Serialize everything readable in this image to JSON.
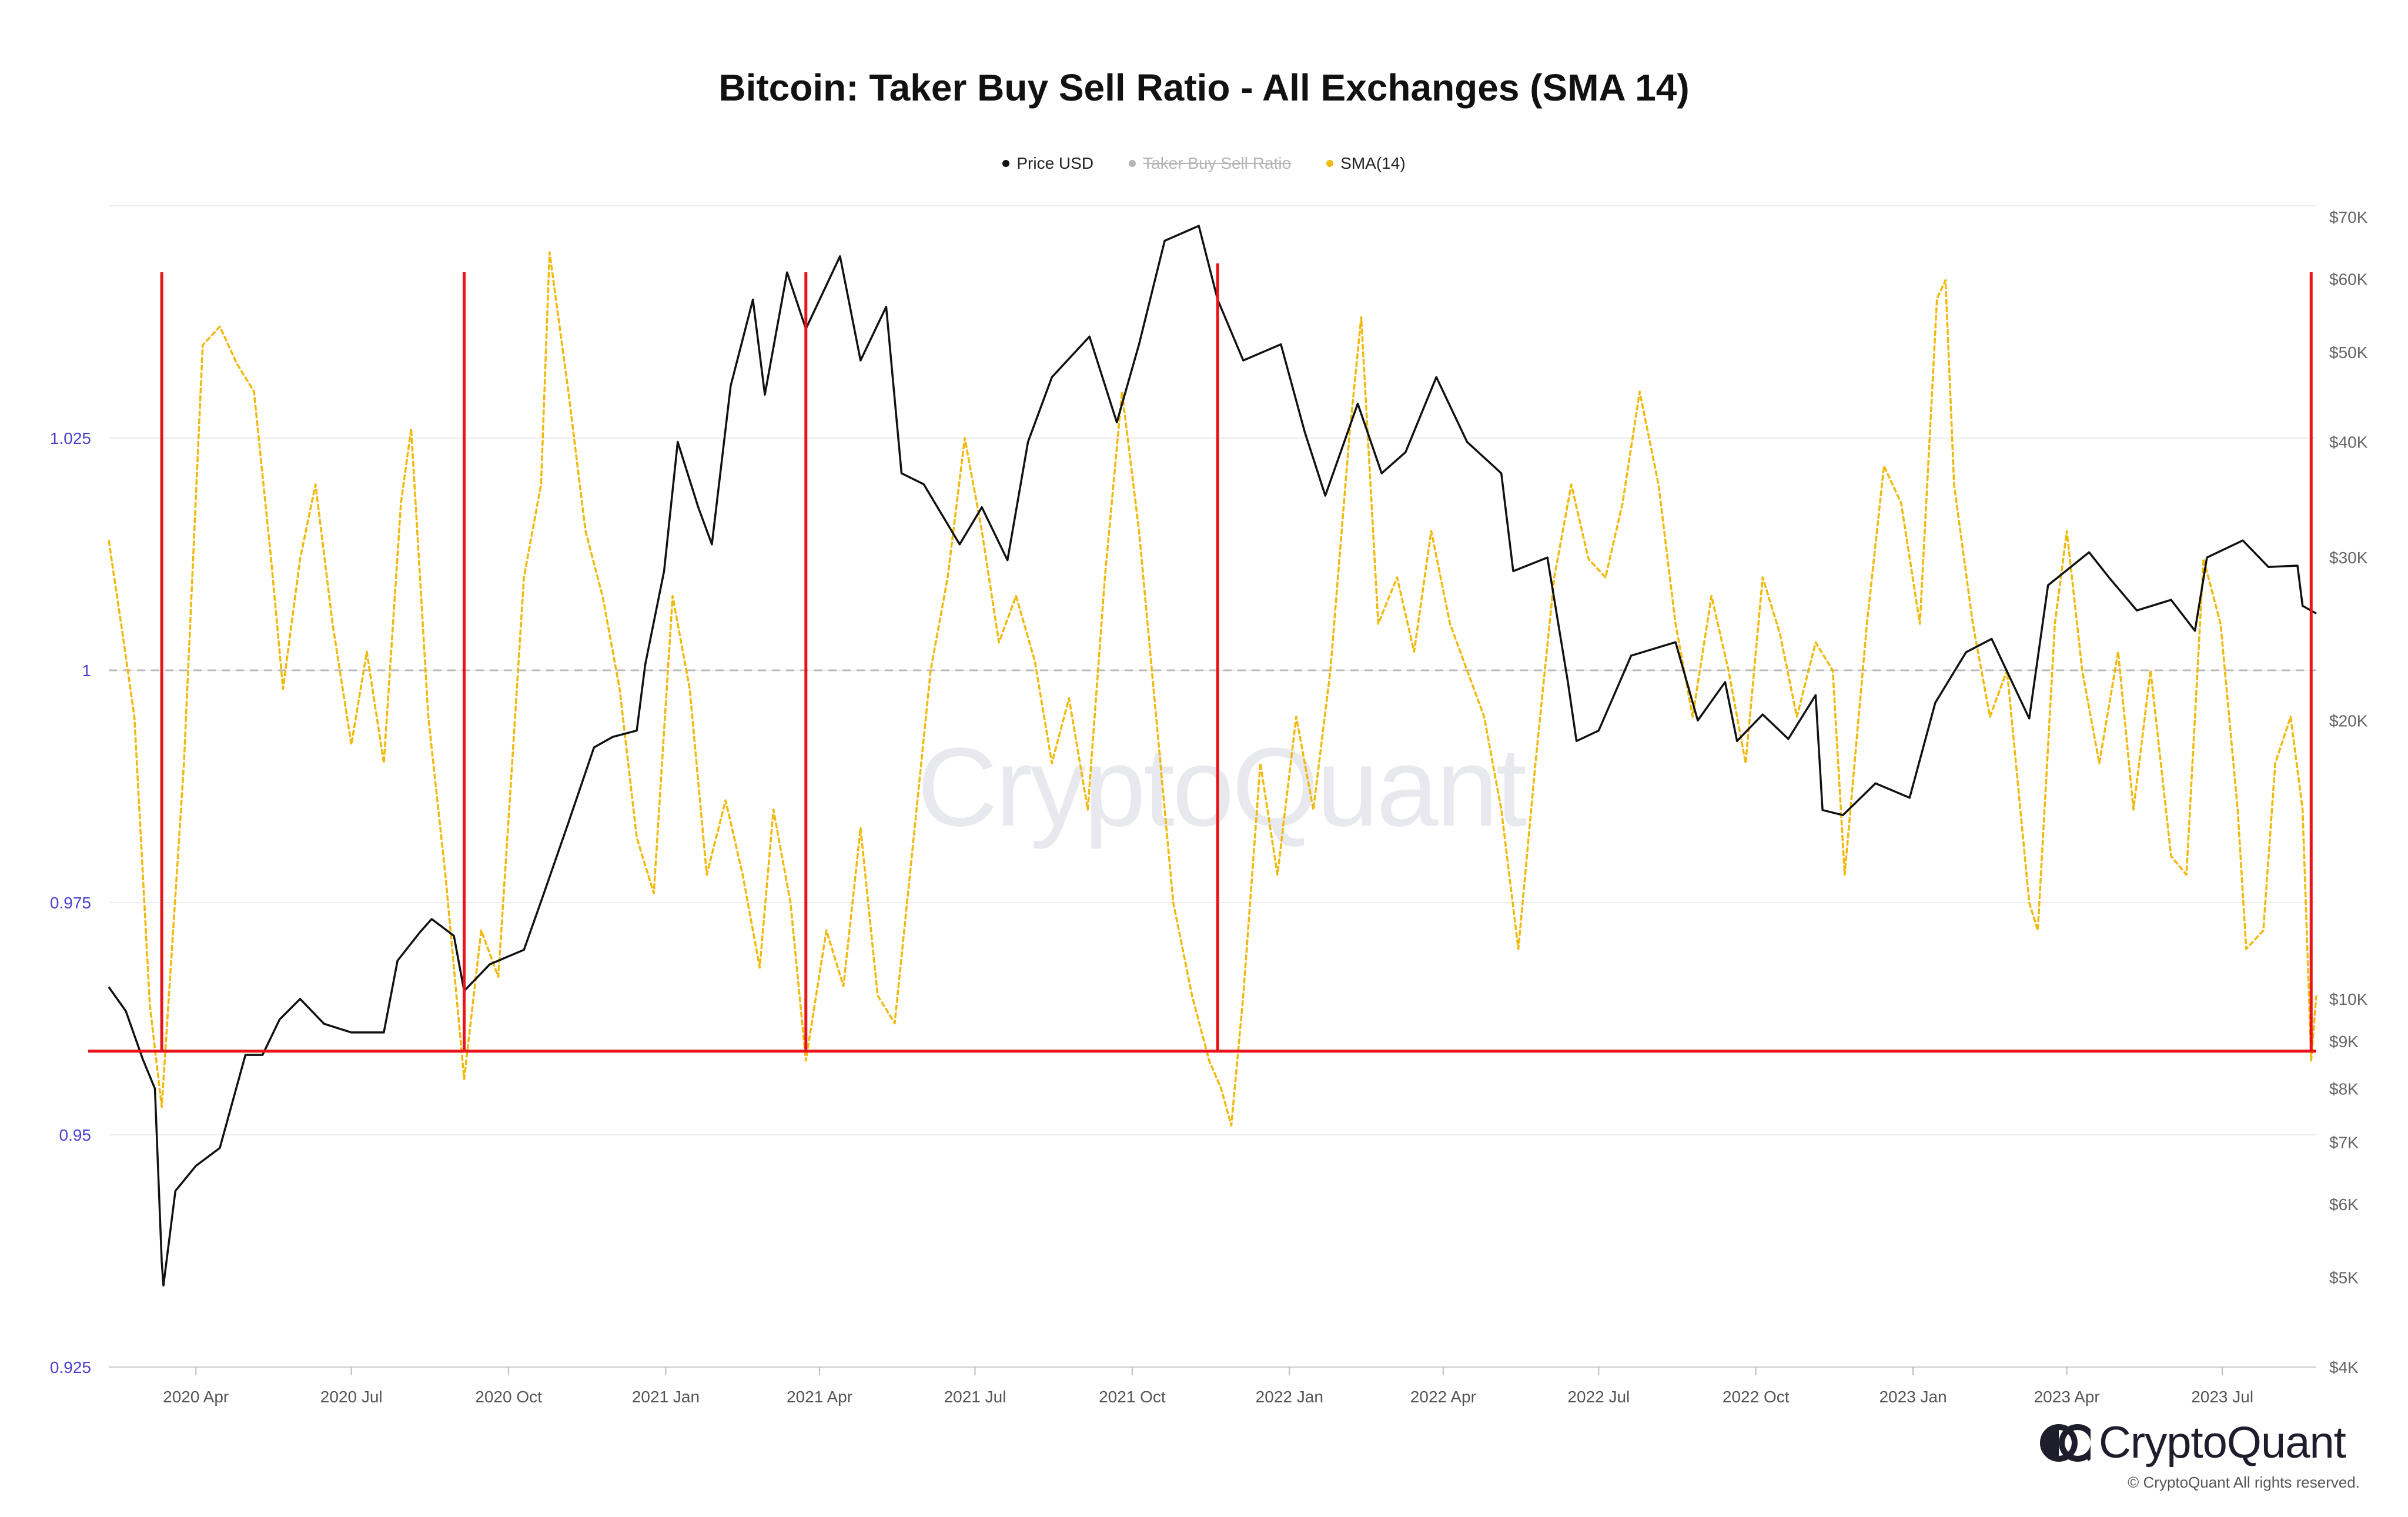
{
  "title": "Bitcoin: Taker Buy Sell Ratio - All Exchanges (SMA 14)",
  "legend": [
    {
      "label": "Price USD",
      "color": "#111111",
      "hidden": false
    },
    {
      "label": "Taker Buy Sell Ratio",
      "color": "#aaaaaa",
      "hidden": true
    },
    {
      "label": "SMA(14)",
      "color": "#f0b90b",
      "hidden": false
    }
  ],
  "watermark": "CryptoQuant",
  "brand": "CryptoQuant",
  "copyright": "© CryptoQuant All rights reserved.",
  "colors": {
    "price": "#111111",
    "sma": "#f0b90b",
    "markers": "#e8141a",
    "left_axis": "#4a3fcf",
    "right_axis": "#666666",
    "reference": "#bbbbbb"
  },
  "chart_data": {
    "type": "line",
    "title": "Bitcoin: Taker Buy Sell Ratio - All Exchanges (SMA 14)",
    "x_range": [
      "2020-02-10",
      "2023-08-25"
    ],
    "x_ticks": [
      "2020 Apr",
      "2020 Jul",
      "2020 Oct",
      "2021 Jan",
      "2021 Apr",
      "2021 Jul",
      "2021 Oct",
      "2022 Jan",
      "2022 Apr",
      "2022 Jul",
      "2022 Oct",
      "2023 Jan",
      "2023 Apr",
      "2023 Jul"
    ],
    "x_tick_dates": [
      "2020-04-01",
      "2020-07-01",
      "2020-10-01",
      "2021-01-01",
      "2021-04-01",
      "2021-07-01",
      "2021-10-01",
      "2022-01-01",
      "2022-04-01",
      "2022-07-01",
      "2022-10-01",
      "2023-01-01",
      "2023-04-01",
      "2023-07-01"
    ],
    "y_left": {
      "ticks": [
        "0.925",
        "0.95",
        "0.975",
        "1",
        "1.025"
      ],
      "tick_values": [
        0.925,
        0.95,
        0.975,
        1,
        1.025
      ],
      "range": [
        0.925,
        1.05
      ]
    },
    "y_right": {
      "scale": "log",
      "ticks": [
        "$4K",
        "$5K",
        "$6K",
        "$7K",
        "$8K",
        "$9K",
        "$10K",
        "$20K",
        "$30K",
        "$40K",
        "$50K",
        "$60K",
        "$70K"
      ],
      "tick_values": [
        4000,
        5000,
        6000,
        7000,
        8000,
        9000,
        10000,
        20000,
        30000,
        40000,
        50000,
        60000,
        70000
      ],
      "range": [
        4000,
        72000
      ]
    },
    "reference_line": {
      "axis": "left",
      "value": 1.0,
      "style": "dashed"
    },
    "threshold_line": {
      "axis": "left",
      "value": 0.959
    },
    "vertical_markers": [
      "2020-03-12",
      "2020-09-05",
      "2021-03-24",
      "2021-11-20",
      "2023-08-22"
    ],
    "series": [
      {
        "name": "Price USD",
        "axis": "right",
        "points": [
          [
            "2020-02-10",
            10300
          ],
          [
            "2020-02-20",
            9700
          ],
          [
            "2020-03-01",
            8600
          ],
          [
            "2020-03-08",
            8000
          ],
          [
            "2020-03-12",
            5200
          ],
          [
            "2020-03-13",
            4900
          ],
          [
            "2020-03-20",
            6200
          ],
          [
            "2020-04-01",
            6600
          ],
          [
            "2020-04-15",
            6900
          ],
          [
            "2020-04-30",
            8700
          ],
          [
            "2020-05-10",
            8700
          ],
          [
            "2020-05-20",
            9500
          ],
          [
            "2020-06-01",
            10000
          ],
          [
            "2020-06-15",
            9400
          ],
          [
            "2020-07-01",
            9200
          ],
          [
            "2020-07-20",
            9200
          ],
          [
            "2020-07-28",
            11000
          ],
          [
            "2020-08-10",
            11800
          ],
          [
            "2020-08-17",
            12200
          ],
          [
            "2020-08-30",
            11700
          ],
          [
            "2020-09-05",
            10200
          ],
          [
            "2020-09-20",
            10900
          ],
          [
            "2020-10-10",
            11300
          ],
          [
            "2020-10-21",
            12900
          ],
          [
            "2020-11-05",
            15500
          ],
          [
            "2020-11-20",
            18700
          ],
          [
            "2020-12-01",
            19200
          ],
          [
            "2020-12-15",
            19500
          ],
          [
            "2020-12-20",
            23000
          ],
          [
            "2020-12-31",
            29000
          ],
          [
            "2021-01-08",
            40000
          ],
          [
            "2021-01-20",
            34000
          ],
          [
            "2021-01-28",
            31000
          ],
          [
            "2021-02-08",
            46000
          ],
          [
            "2021-02-21",
            57000
          ],
          [
            "2021-02-28",
            45000
          ],
          [
            "2021-03-13",
            61000
          ],
          [
            "2021-03-24",
            53000
          ],
          [
            "2021-04-13",
            63500
          ],
          [
            "2021-04-25",
            49000
          ],
          [
            "2021-05-10",
            56000
          ],
          [
            "2021-05-19",
            37000
          ],
          [
            "2021-06-01",
            36000
          ],
          [
            "2021-06-22",
            31000
          ],
          [
            "2021-07-05",
            34000
          ],
          [
            "2021-07-20",
            29800
          ],
          [
            "2021-08-01",
            40000
          ],
          [
            "2021-08-15",
            47000
          ],
          [
            "2021-09-06",
            52000
          ],
          [
            "2021-09-22",
            42000
          ],
          [
            "2021-10-05",
            51000
          ],
          [
            "2021-10-20",
            66000
          ],
          [
            "2021-11-09",
            68500
          ],
          [
            "2021-11-20",
            57000
          ],
          [
            "2021-12-05",
            49000
          ],
          [
            "2021-12-27",
            51000
          ],
          [
            "2022-01-10",
            41000
          ],
          [
            "2022-01-22",
            35000
          ],
          [
            "2022-02-10",
            44000
          ],
          [
            "2022-02-24",
            37000
          ],
          [
            "2022-03-10",
            39000
          ],
          [
            "2022-03-28",
            47000
          ],
          [
            "2022-04-15",
            40000
          ],
          [
            "2022-05-05",
            37000
          ],
          [
            "2022-05-12",
            29000
          ],
          [
            "2022-06-01",
            30000
          ],
          [
            "2022-06-13",
            22000
          ],
          [
            "2022-06-18",
            19000
          ],
          [
            "2022-07-01",
            19500
          ],
          [
            "2022-07-20",
            23500
          ],
          [
            "2022-08-15",
            24300
          ],
          [
            "2022-08-28",
            20000
          ],
          [
            "2022-09-13",
            22000
          ],
          [
            "2022-09-20",
            19000
          ],
          [
            "2022-10-05",
            20300
          ],
          [
            "2022-10-20",
            19100
          ],
          [
            "2022-11-05",
            21300
          ],
          [
            "2022-11-09",
            16000
          ],
          [
            "2022-11-21",
            15800
          ],
          [
            "2022-12-10",
            17100
          ],
          [
            "2022-12-30",
            16500
          ],
          [
            "2023-01-14",
            20900
          ],
          [
            "2023-02-01",
            23700
          ],
          [
            "2023-02-16",
            24500
          ],
          [
            "2023-03-10",
            20100
          ],
          [
            "2023-03-21",
            28000
          ],
          [
            "2023-04-14",
            30400
          ],
          [
            "2023-04-26",
            28500
          ],
          [
            "2023-05-12",
            26300
          ],
          [
            "2023-06-01",
            27000
          ],
          [
            "2023-06-15",
            25000
          ],
          [
            "2023-06-22",
            30000
          ],
          [
            "2023-07-13",
            31300
          ],
          [
            "2023-07-28",
            29300
          ],
          [
            "2023-08-14",
            29400
          ],
          [
            "2023-08-17",
            26600
          ],
          [
            "2023-08-25",
            26100
          ]
        ]
      },
      {
        "name": "SMA(14)",
        "axis": "left",
        "points": [
          [
            "2020-02-10",
            1.014
          ],
          [
            "2020-02-18",
            1.004
          ],
          [
            "2020-02-25",
            0.995
          ],
          [
            "2020-03-05",
            0.964
          ],
          [
            "2020-03-12",
            0.953
          ],
          [
            "2020-03-25",
            0.99
          ],
          [
            "2020-04-05",
            1.035
          ],
          [
            "2020-04-15",
            1.037
          ],
          [
            "2020-04-25",
            1.033
          ],
          [
            "2020-05-05",
            1.03
          ],
          [
            "2020-05-15",
            1.012
          ],
          [
            "2020-05-22",
            0.998
          ],
          [
            "2020-06-01",
            1.012
          ],
          [
            "2020-06-10",
            1.02
          ],
          [
            "2020-06-20",
            1.005
          ],
          [
            "2020-07-01",
            0.992
          ],
          [
            "2020-07-10",
            1.002
          ],
          [
            "2020-07-20",
            0.99
          ],
          [
            "2020-07-30",
            1.018
          ],
          [
            "2020-08-05",
            1.026
          ],
          [
            "2020-08-15",
            0.995
          ],
          [
            "2020-08-25",
            0.978
          ],
          [
            "2020-09-05",
            0.956
          ],
          [
            "2020-09-15",
            0.972
          ],
          [
            "2020-09-25",
            0.967
          ],
          [
            "2020-10-01",
            0.984
          ],
          [
            "2020-10-10",
            1.01
          ],
          [
            "2020-10-20",
            1.02
          ],
          [
            "2020-10-25",
            1.045
          ],
          [
            "2020-11-05",
            1.03
          ],
          [
            "2020-11-15",
            1.015
          ],
          [
            "2020-11-25",
            1.008
          ],
          [
            "2020-12-05",
            0.998
          ],
          [
            "2020-12-15",
            0.982
          ],
          [
            "2020-12-25",
            0.976
          ],
          [
            "2021-01-05",
            1.008
          ],
          [
            "2021-01-15",
            0.998
          ],
          [
            "2021-01-25",
            0.978
          ],
          [
            "2021-02-05",
            0.986
          ],
          [
            "2021-02-15",
            0.978
          ],
          [
            "2021-02-25",
            0.968
          ],
          [
            "2021-03-05",
            0.985
          ],
          [
            "2021-03-15",
            0.975
          ],
          [
            "2021-03-24",
            0.958
          ],
          [
            "2021-04-05",
            0.972
          ],
          [
            "2021-04-15",
            0.966
          ],
          [
            "2021-04-25",
            0.983
          ],
          [
            "2021-05-05",
            0.965
          ],
          [
            "2021-05-15",
            0.962
          ],
          [
            "2021-05-25",
            0.98
          ],
          [
            "2021-06-05",
            1.0
          ],
          [
            "2021-06-15",
            1.01
          ],
          [
            "2021-06-25",
            1.025
          ],
          [
            "2021-07-05",
            1.015
          ],
          [
            "2021-07-15",
            1.003
          ],
          [
            "2021-07-25",
            1.008
          ],
          [
            "2021-08-05",
            1.001
          ],
          [
            "2021-08-15",
            0.99
          ],
          [
            "2021-08-25",
            0.997
          ],
          [
            "2021-09-05",
            0.985
          ],
          [
            "2021-09-15",
            1.01
          ],
          [
            "2021-09-25",
            1.03
          ],
          [
            "2021-10-05",
            1.015
          ],
          [
            "2021-10-15",
            0.995
          ],
          [
            "2021-10-25",
            0.975
          ],
          [
            "2021-11-05",
            0.965
          ],
          [
            "2021-11-15",
            0.958
          ],
          [
            "2021-11-22",
            0.955
          ],
          [
            "2021-11-28",
            0.951
          ],
          [
            "2021-12-05",
            0.965
          ],
          [
            "2021-12-15",
            0.99
          ],
          [
            "2021-12-25",
            0.978
          ],
          [
            "2022-01-05",
            0.995
          ],
          [
            "2022-01-15",
            0.985
          ],
          [
            "2022-01-25",
            1.0
          ],
          [
            "2022-02-05",
            1.025
          ],
          [
            "2022-02-12",
            1.038
          ],
          [
            "2022-02-22",
            1.005
          ],
          [
            "2022-03-05",
            1.01
          ],
          [
            "2022-03-15",
            1.002
          ],
          [
            "2022-03-25",
            1.015
          ],
          [
            "2022-04-05",
            1.005
          ],
          [
            "2022-04-15",
            1.0
          ],
          [
            "2022-04-25",
            0.995
          ],
          [
            "2022-05-05",
            0.985
          ],
          [
            "2022-05-15",
            0.97
          ],
          [
            "2022-05-25",
            0.99
          ],
          [
            "2022-06-05",
            1.01
          ],
          [
            "2022-06-15",
            1.02
          ],
          [
            "2022-06-25",
            1.012
          ],
          [
            "2022-07-05",
            1.01
          ],
          [
            "2022-07-15",
            1.018
          ],
          [
            "2022-07-25",
            1.03
          ],
          [
            "2022-08-05",
            1.02
          ],
          [
            "2022-08-15",
            1.005
          ],
          [
            "2022-08-25",
            0.995
          ],
          [
            "2022-09-05",
            1.008
          ],
          [
            "2022-09-15",
            1.0
          ],
          [
            "2022-09-25",
            0.99
          ],
          [
            "2022-10-05",
            1.01
          ],
          [
            "2022-10-15",
            1.004
          ],
          [
            "2022-10-25",
            0.995
          ],
          [
            "2022-11-05",
            1.003
          ],
          [
            "2022-11-15",
            1.0
          ],
          [
            "2022-11-22",
            0.978
          ],
          [
            "2022-12-05",
            1.005
          ],
          [
            "2022-12-15",
            1.022
          ],
          [
            "2022-12-25",
            1.018
          ],
          [
            "2023-01-05",
            1.005
          ],
          [
            "2023-01-15",
            1.04
          ],
          [
            "2023-01-20",
            1.042
          ],
          [
            "2023-01-25",
            1.02
          ],
          [
            "2023-02-05",
            1.005
          ],
          [
            "2023-02-15",
            0.995
          ],
          [
            "2023-02-25",
            1.0
          ],
          [
            "2023-03-10",
            0.975
          ],
          [
            "2023-03-15",
            0.972
          ],
          [
            "2023-03-25",
            1.005
          ],
          [
            "2023-04-01",
            1.015
          ],
          [
            "2023-04-10",
            1.0
          ],
          [
            "2023-04-20",
            0.99
          ],
          [
            "2023-05-01",
            1.002
          ],
          [
            "2023-05-10",
            0.985
          ],
          [
            "2023-05-20",
            1.0
          ],
          [
            "2023-06-01",
            0.98
          ],
          [
            "2023-06-10",
            0.978
          ],
          [
            "2023-06-20",
            1.012
          ],
          [
            "2023-06-30",
            1.005
          ],
          [
            "2023-07-10",
            0.985
          ],
          [
            "2023-07-15",
            0.97
          ],
          [
            "2023-07-25",
            0.972
          ],
          [
            "2023-08-01",
            0.99
          ],
          [
            "2023-08-10",
            0.995
          ],
          [
            "2023-08-17",
            0.985
          ],
          [
            "2023-08-22",
            0.958
          ],
          [
            "2023-08-25",
            0.965
          ]
        ]
      }
    ],
    "grid": true,
    "legend_position": "top-center"
  }
}
